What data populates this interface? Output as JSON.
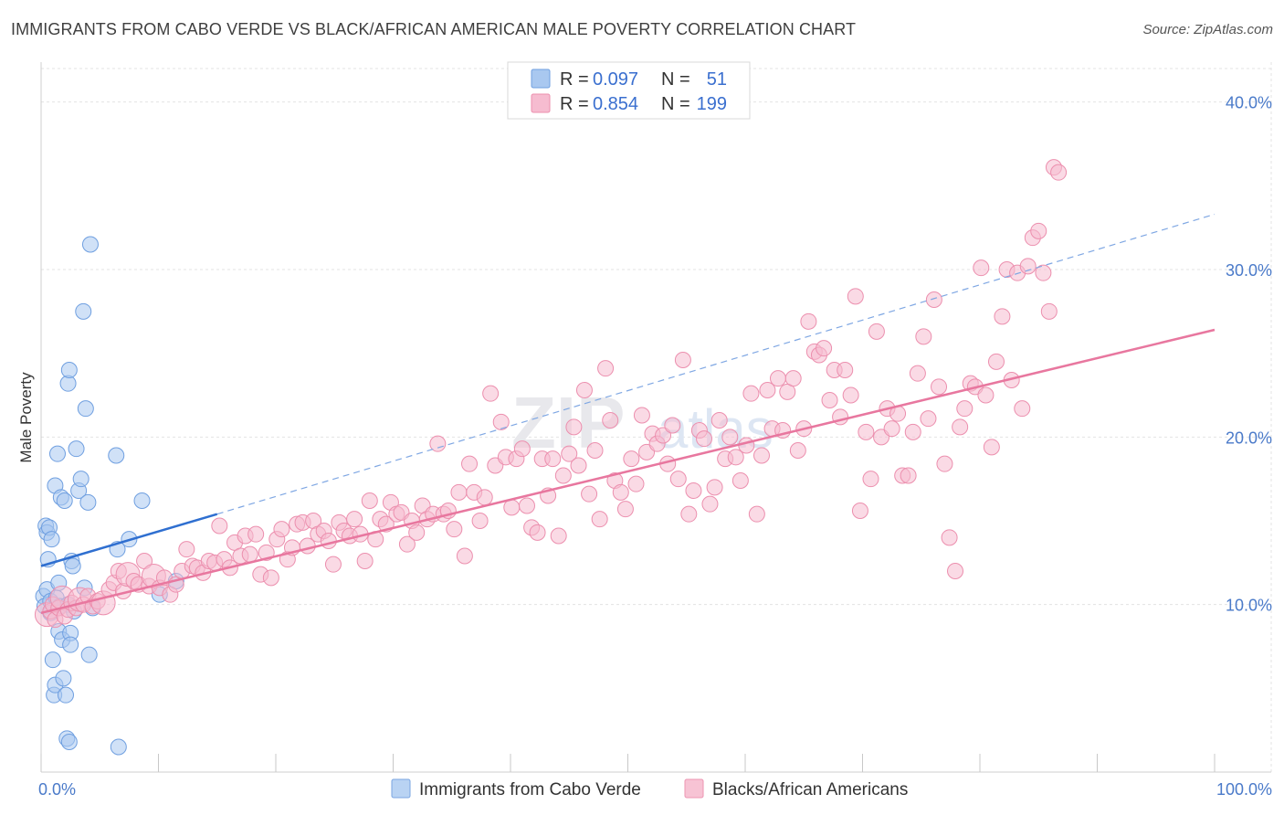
{
  "header": {
    "title": "IMMIGRANTS FROM CABO VERDE VS BLACK/AFRICAN AMERICAN MALE POVERTY CORRELATION CHART",
    "source": "Source: ZipAtlas.com"
  },
  "legend": {
    "r_label": "R =",
    "n_label": "N =",
    "rows": [
      {
        "r": "0.097",
        "n": "51",
        "color": "#a9c8f0",
        "stroke": "#6f9fe0"
      },
      {
        "r": "0.854",
        "n": "199",
        "color": "#f6bcd0",
        "stroke": "#ec8fae"
      }
    ]
  },
  "bottom_legend": [
    {
      "label": "Immigrants from Cabo Verde",
      "color": "#b9d3f3",
      "stroke": "#7aa6e2"
    },
    {
      "label": "Blacks/African Americans",
      "color": "#f7c3d4",
      "stroke": "#ec94b2"
    }
  ],
  "watermark": "ZIPatlas",
  "chart_data": {
    "type": "scatter",
    "title": "IMMIGRANTS FROM CABO VERDE VS BLACK/AFRICAN AMERICAN MALE POVERTY CORRELATION CHART",
    "xlabel": "",
    "ylabel": "Male Poverty",
    "xlim": [
      0,
      100
    ],
    "ylim": [
      0,
      42
    ],
    "x_tick_labels": [
      "0.0%",
      "100.0%"
    ],
    "y_ticks": [
      10,
      20,
      30,
      40
    ],
    "y_tick_labels": [
      "10.0%",
      "20.0%",
      "30.0%",
      "40.0%"
    ],
    "grid": true,
    "series": [
      {
        "name": "Immigrants from Cabo Verde",
        "color": "#a9c8f0",
        "stroke": "#6f9fe0",
        "trend": {
          "x0": 0,
          "y0": 12.3,
          "x1": 15,
          "y1": 15.4,
          "color": "#2f6fd0",
          "dash_to": {
            "x": 100,
            "y": 33.3
          }
        },
        "points": [
          [
            0.2,
            10.5
          ],
          [
            0.3,
            9.9
          ],
          [
            0.4,
            14.7
          ],
          [
            0.5,
            14.3
          ],
          [
            0.5,
            10.9
          ],
          [
            0.6,
            12.7
          ],
          [
            0.7,
            14.6
          ],
          [
            0.8,
            10.2
          ],
          [
            0.8,
            9.5
          ],
          [
            0.9,
            13.9
          ],
          [
            1.0,
            6.7
          ],
          [
            1.1,
            4.6
          ],
          [
            1.2,
            17.1
          ],
          [
            1.2,
            5.2
          ],
          [
            1.3,
            10.4
          ],
          [
            1.4,
            19.0
          ],
          [
            1.5,
            11.3
          ],
          [
            1.5,
            8.4
          ],
          [
            1.6,
            9.9
          ],
          [
            1.7,
            16.4
          ],
          [
            1.8,
            7.9
          ],
          [
            1.9,
            5.6
          ],
          [
            2.0,
            16.2
          ],
          [
            2.1,
            4.6
          ],
          [
            2.2,
            2.0
          ],
          [
            2.3,
            10.0
          ],
          [
            2.3,
            23.2
          ],
          [
            2.4,
            24.0
          ],
          [
            2.4,
            1.8
          ],
          [
            2.5,
            8.3
          ],
          [
            2.5,
            7.6
          ],
          [
            2.6,
            12.6
          ],
          [
            2.7,
            12.3
          ],
          [
            2.8,
            9.6
          ],
          [
            3.0,
            19.3
          ],
          [
            3.2,
            16.8
          ],
          [
            3.4,
            17.5
          ],
          [
            3.6,
            27.5
          ],
          [
            3.7,
            11.0
          ],
          [
            3.8,
            21.7
          ],
          [
            4.0,
            16.1
          ],
          [
            4.1,
            7.0
          ],
          [
            4.2,
            31.5
          ],
          [
            4.4,
            9.8
          ],
          [
            6.4,
            18.9
          ],
          [
            6.5,
            13.3
          ],
          [
            6.6,
            1.5
          ],
          [
            7.5,
            13.9
          ],
          [
            8.6,
            16.2
          ],
          [
            10.1,
            10.6
          ],
          [
            11.5,
            11.4
          ]
        ]
      },
      {
        "name": "Blacks/African Americans",
        "color": "#f6bcd0",
        "stroke": "#ec8fae",
        "trend": {
          "x0": 0,
          "y0": 9.5,
          "x1": 100,
          "y1": 26.4,
          "color": "#e8779f"
        },
        "points": [
          [
            0.5,
            9.4
          ],
          [
            0.8,
            9.6
          ],
          [
            1.0,
            10.0
          ],
          [
            1.2,
            9.1
          ],
          [
            1.5,
            9.8
          ],
          [
            1.8,
            10.4
          ],
          [
            2.0,
            9.3
          ],
          [
            2.3,
            9.7
          ],
          [
            2.6,
            10.1
          ],
          [
            3.0,
            9.8
          ],
          [
            3.3,
            10.3
          ],
          [
            3.6,
            10.0
          ],
          [
            4.0,
            10.5
          ],
          [
            4.4,
            9.9
          ],
          [
            4.8,
            10.2
          ],
          [
            5.3,
            10.1
          ],
          [
            5.8,
            10.9
          ],
          [
            6.2,
            11.3
          ],
          [
            6.6,
            12.0
          ],
          [
            7.0,
            10.8
          ],
          [
            7.4,
            11.8
          ],
          [
            7.9,
            11.4
          ],
          [
            8.3,
            11.2
          ],
          [
            8.8,
            12.6
          ],
          [
            9.2,
            11.1
          ],
          [
            9.6,
            11.7
          ],
          [
            10.1,
            11.0
          ],
          [
            10.5,
            11.6
          ],
          [
            11.0,
            10.6
          ],
          [
            11.5,
            11.2
          ],
          [
            12.0,
            12.0
          ],
          [
            12.4,
            13.3
          ],
          [
            12.9,
            12.3
          ],
          [
            13.3,
            12.2
          ],
          [
            13.8,
            11.9
          ],
          [
            14.3,
            12.6
          ],
          [
            14.8,
            12.5
          ],
          [
            15.2,
            14.7
          ],
          [
            15.6,
            12.7
          ],
          [
            16.1,
            12.2
          ],
          [
            16.5,
            13.7
          ],
          [
            17.0,
            12.9
          ],
          [
            17.4,
            14.1
          ],
          [
            17.8,
            13.0
          ],
          [
            18.3,
            14.2
          ],
          [
            18.7,
            11.8
          ],
          [
            19.2,
            13.1
          ],
          [
            19.6,
            11.6
          ],
          [
            20.1,
            13.9
          ],
          [
            20.5,
            14.5
          ],
          [
            21.0,
            12.7
          ],
          [
            21.4,
            13.4
          ],
          [
            21.8,
            14.8
          ],
          [
            22.3,
            14.9
          ],
          [
            22.7,
            13.5
          ],
          [
            23.2,
            15.0
          ],
          [
            23.6,
            14.2
          ],
          [
            24.1,
            14.4
          ],
          [
            24.5,
            13.8
          ],
          [
            24.9,
            12.4
          ],
          [
            25.4,
            14.9
          ],
          [
            25.8,
            14.4
          ],
          [
            26.3,
            14.1
          ],
          [
            26.7,
            15.1
          ],
          [
            27.2,
            14.2
          ],
          [
            27.6,
            12.6
          ],
          [
            28.0,
            16.2
          ],
          [
            28.5,
            13.9
          ],
          [
            28.9,
            15.1
          ],
          [
            29.4,
            14.8
          ],
          [
            29.8,
            16.1
          ],
          [
            30.3,
            15.4
          ],
          [
            30.7,
            15.5
          ],
          [
            31.2,
            13.6
          ],
          [
            31.6,
            15.0
          ],
          [
            32.0,
            14.3
          ],
          [
            32.5,
            15.9
          ],
          [
            32.9,
            15.1
          ],
          [
            33.4,
            15.4
          ],
          [
            33.8,
            19.6
          ],
          [
            34.3,
            15.4
          ],
          [
            34.7,
            15.6
          ],
          [
            35.2,
            14.5
          ],
          [
            35.6,
            16.7
          ],
          [
            36.1,
            12.9
          ],
          [
            36.5,
            18.4
          ],
          [
            36.9,
            16.7
          ],
          [
            37.4,
            15.0
          ],
          [
            37.8,
            16.4
          ],
          [
            38.3,
            22.6
          ],
          [
            38.7,
            18.3
          ],
          [
            39.2,
            20.9
          ],
          [
            39.6,
            18.8
          ],
          [
            40.1,
            15.8
          ],
          [
            40.5,
            18.7
          ],
          [
            41.0,
            19.3
          ],
          [
            41.4,
            15.9
          ],
          [
            41.8,
            14.6
          ],
          [
            42.3,
            14.3
          ],
          [
            42.7,
            18.7
          ],
          [
            43.2,
            16.5
          ],
          [
            43.6,
            18.7
          ],
          [
            44.1,
            14.1
          ],
          [
            44.5,
            17.7
          ],
          [
            45.0,
            19.0
          ],
          [
            45.4,
            20.6
          ],
          [
            45.8,
            18.3
          ],
          [
            46.3,
            22.8
          ],
          [
            46.7,
            16.6
          ],
          [
            47.2,
            19.2
          ],
          [
            47.6,
            15.1
          ],
          [
            48.1,
            24.1
          ],
          [
            48.5,
            21.0
          ],
          [
            48.9,
            17.4
          ],
          [
            49.4,
            16.7
          ],
          [
            49.8,
            15.7
          ],
          [
            50.3,
            18.7
          ],
          [
            50.7,
            17.2
          ],
          [
            51.2,
            21.3
          ],
          [
            51.6,
            19.1
          ],
          [
            52.1,
            20.2
          ],
          [
            52.5,
            19.6
          ],
          [
            53.0,
            20.1
          ],
          [
            53.4,
            18.4
          ],
          [
            53.8,
            20.7
          ],
          [
            54.3,
            17.5
          ],
          [
            54.7,
            24.6
          ],
          [
            55.2,
            15.4
          ],
          [
            55.6,
            16.8
          ],
          [
            56.1,
            20.4
          ],
          [
            56.5,
            19.9
          ],
          [
            57.0,
            16.0
          ],
          [
            57.4,
            17.0
          ],
          [
            57.8,
            21.0
          ],
          [
            58.3,
            18.7
          ],
          [
            58.7,
            20.0
          ],
          [
            59.2,
            18.8
          ],
          [
            59.6,
            17.4
          ],
          [
            60.1,
            19.5
          ],
          [
            60.5,
            22.6
          ],
          [
            61.0,
            15.4
          ],
          [
            61.4,
            18.9
          ],
          [
            61.9,
            22.8
          ],
          [
            62.3,
            20.5
          ],
          [
            62.8,
            23.5
          ],
          [
            63.2,
            20.4
          ],
          [
            63.6,
            22.7
          ],
          [
            64.1,
            23.5
          ],
          [
            64.5,
            19.2
          ],
          [
            65.0,
            20.5
          ],
          [
            65.4,
            26.9
          ],
          [
            65.9,
            25.1
          ],
          [
            66.3,
            24.9
          ],
          [
            66.7,
            25.3
          ],
          [
            67.2,
            22.2
          ],
          [
            67.6,
            24.0
          ],
          [
            68.1,
            21.2
          ],
          [
            68.5,
            24.0
          ],
          [
            69.0,
            22.5
          ],
          [
            69.4,
            28.4
          ],
          [
            69.8,
            15.6
          ],
          [
            70.3,
            20.3
          ],
          [
            70.7,
            17.5
          ],
          [
            71.2,
            26.3
          ],
          [
            71.6,
            20.0
          ],
          [
            72.1,
            21.7
          ],
          [
            72.5,
            20.5
          ],
          [
            73.0,
            21.4
          ],
          [
            73.4,
            17.7
          ],
          [
            73.9,
            17.7
          ],
          [
            74.3,
            20.3
          ],
          [
            74.7,
            23.8
          ],
          [
            75.2,
            26.0
          ],
          [
            75.6,
            21.1
          ],
          [
            76.1,
            28.2
          ],
          [
            76.5,
            23.0
          ],
          [
            77.0,
            18.4
          ],
          [
            77.4,
            14.0
          ],
          [
            77.9,
            12.0
          ],
          [
            78.3,
            20.6
          ],
          [
            78.7,
            21.7
          ],
          [
            79.2,
            23.2
          ],
          [
            79.6,
            23.0
          ],
          [
            80.1,
            30.1
          ],
          [
            80.5,
            22.5
          ],
          [
            81.0,
            19.4
          ],
          [
            81.4,
            24.5
          ],
          [
            81.9,
            27.2
          ],
          [
            82.3,
            30.0
          ],
          [
            82.7,
            23.4
          ],
          [
            83.2,
            29.8
          ],
          [
            83.6,
            21.7
          ],
          [
            84.1,
            30.2
          ],
          [
            84.5,
            31.9
          ],
          [
            85.0,
            32.3
          ],
          [
            85.4,
            29.8
          ],
          [
            85.9,
            27.5
          ],
          [
            86.3,
            36.1
          ],
          [
            86.7,
            35.8
          ]
        ]
      }
    ]
  }
}
